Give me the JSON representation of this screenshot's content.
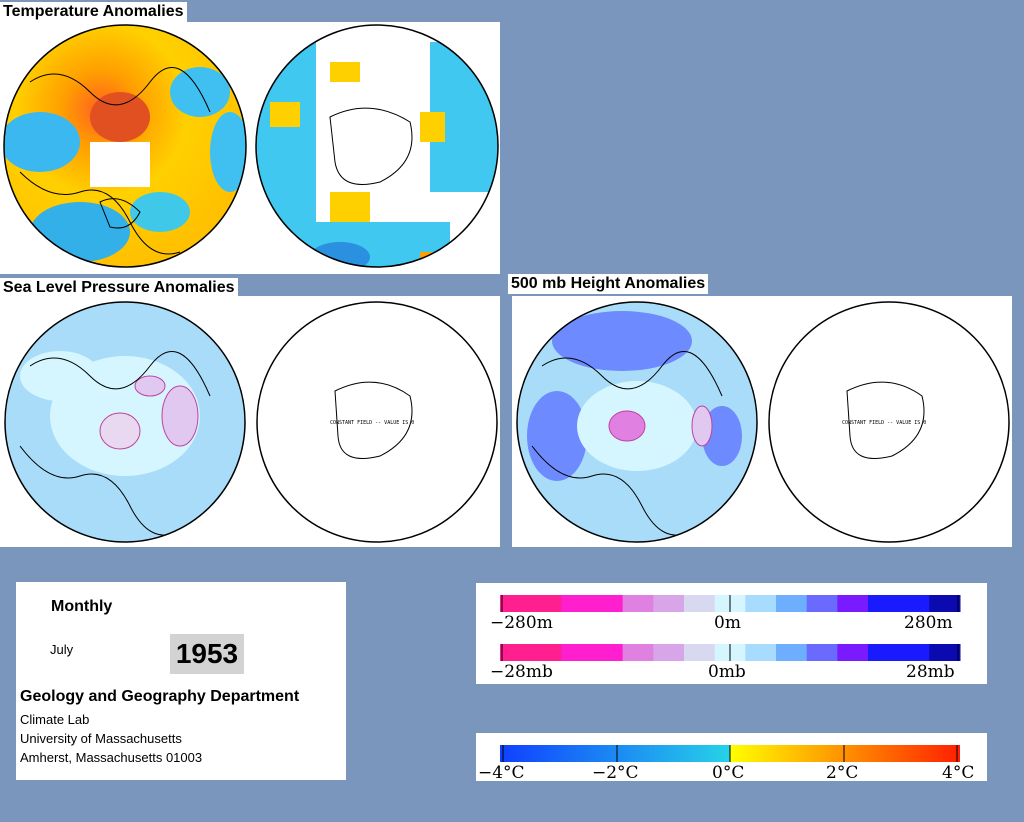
{
  "panels": {
    "temperature": {
      "title": "Temperature Anomalies"
    },
    "slp": {
      "title": "Sea Level Pressure Anomalies",
      "constant_note": "CONSTANT FIELD -- VALUE IS 0"
    },
    "height": {
      "title": "500 mb Height Anomalies",
      "constant_note": "CONSTANT FIELD -- VALUE IS 0"
    }
  },
  "info": {
    "period": "Monthly",
    "month": "July",
    "year": "1953",
    "department": "Geology and Geography Department",
    "lines": [
      "Climate Lab",
      "University of Massachusetts",
      "Amherst, Massachusetts 01003"
    ]
  },
  "legends": {
    "height": {
      "ticks": [
        "−280m",
        "0m",
        "280m"
      ],
      "colors": [
        "#ff1f8f",
        "#ff1f8f",
        "#ff1fcf",
        "#ff1fcf",
        "#e080e0",
        "#d8a6e8",
        "#d8d8f0",
        "#d6f6ff",
        "#a8dcff",
        "#6eaeff",
        "#6a6aff",
        "#7a1aff",
        "#1a1aff",
        "#1a1aff",
        "#0a0ab0"
      ]
    },
    "pressure": {
      "ticks": [
        "−28mb",
        "0mb",
        "28mb"
      ],
      "colors": [
        "#ff1f8f",
        "#ff1f8f",
        "#ff1fcf",
        "#ff1fcf",
        "#e080e0",
        "#d8a6e8",
        "#d8d8f0",
        "#d6f6ff",
        "#a8dcff",
        "#6eaeff",
        "#6a6aff",
        "#7a1aff",
        "#1a1aff",
        "#1a1aff",
        "#0a0ab0"
      ]
    },
    "temperature": {
      "ticks": [
        "−4°C",
        "−2°C",
        "0°C",
        "2°C",
        "4°C"
      ],
      "colors": [
        "#1040ff",
        "#27d2e8",
        "#ffff00",
        "#ff8000",
        "#ff2000"
      ]
    }
  }
}
